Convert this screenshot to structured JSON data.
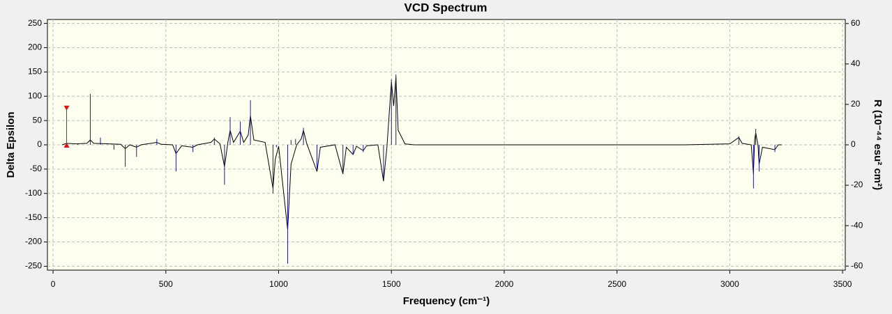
{
  "chart_data": {
    "type": "spectrum",
    "title": "VCD Spectrum",
    "xlabel": "Frequency (cm⁻¹)",
    "ylabel": "Delta Epsilon",
    "y2label": "R (10⁻⁴⁴ esu² cm²)",
    "xlim": [
      -25,
      3512
    ],
    "ylim": [
      -258,
      258
    ],
    "y2lim": [
      -62,
      62
    ],
    "xticks": [
      0,
      500,
      1000,
      1500,
      2000,
      2500,
      3000,
      3500
    ],
    "yticks": [
      -250,
      -200,
      -150,
      -100,
      -50,
      0,
      50,
      100,
      150,
      200,
      250
    ],
    "y2ticks": [
      -60,
      -40,
      -20,
      0,
      20,
      40,
      60
    ],
    "grid": true,
    "series": [
      {
        "type": "line",
        "color": "#000000",
        "x": [
          40,
          60,
          100,
          150,
          165,
          180,
          300,
          320,
          340,
          370,
          390,
          460,
          480,
          530,
          545,
          570,
          620,
          640,
          700,
          715,
          740,
          760,
          775,
          785,
          800,
          830,
          845,
          865,
          875,
          890,
          940,
          975,
          985,
          1000,
          1040,
          1055,
          1080,
          1100,
          1110,
          1125,
          1170,
          1185,
          1250,
          1285,
          1300,
          1330,
          1345,
          1375,
          1390,
          1440,
          1465,
          1480,
          1500,
          1510,
          1520,
          1530,
          1560,
          1600,
          2800,
          3000,
          3040,
          3055,
          3095,
          3105,
          3110,
          3115,
          3125,
          3130,
          3145,
          3200,
          3215,
          3230
        ],
        "values": [
          0,
          3,
          2,
          3,
          10,
          3,
          1,
          -8,
          0,
          -5,
          0,
          5,
          1,
          0,
          -18,
          -2,
          -5,
          0,
          5,
          12,
          2,
          -45,
          5,
          30,
          5,
          28,
          5,
          20,
          60,
          10,
          5,
          -90,
          -30,
          -3,
          -175,
          -40,
          0,
          12,
          30,
          2,
          -55,
          -5,
          0,
          -60,
          -5,
          -20,
          -3,
          -12,
          -2,
          0,
          -75,
          -5,
          130,
          80,
          140,
          30,
          2,
          0,
          0,
          2,
          15,
          3,
          0,
          -60,
          10,
          25,
          0,
          -40,
          -5,
          -10,
          0,
          0
        ]
      },
      {
        "type": "stem",
        "axis": "y2",
        "color": "#1a1aa0",
        "x": [
          110,
          165,
          210,
          270,
          320,
          370,
          460,
          545,
          620,
          715,
          760,
          785,
          830,
          875,
          975,
          990,
          1040,
          1055,
          1075,
          1110,
          1170,
          1285,
          1330,
          1375,
          1465,
          1500,
          1520,
          3040,
          3105,
          3115,
          3130,
          3200
        ],
        "values": [
          0.7,
          25.2,
          3.6,
          -2.4,
          -10.8,
          -6,
          2.9,
          -13.2,
          -3.6,
          3.6,
          -19.7,
          13.7,
          11.5,
          22.1,
          -24,
          -1.2,
          -58.8,
          2.4,
          2.9,
          8.4,
          -12,
          -14.4,
          -4.8,
          -3.6,
          -16.8,
          32.4,
          34.8,
          4.3,
          -21.6,
          7.9,
          -13.2,
          -3.6
        ]
      },
      {
        "type": "stem",
        "axis": "y2",
        "color": "#e01010",
        "marker": "triangle",
        "x": [
          60
        ],
        "values": [
          18
        ]
      }
    ]
  }
}
